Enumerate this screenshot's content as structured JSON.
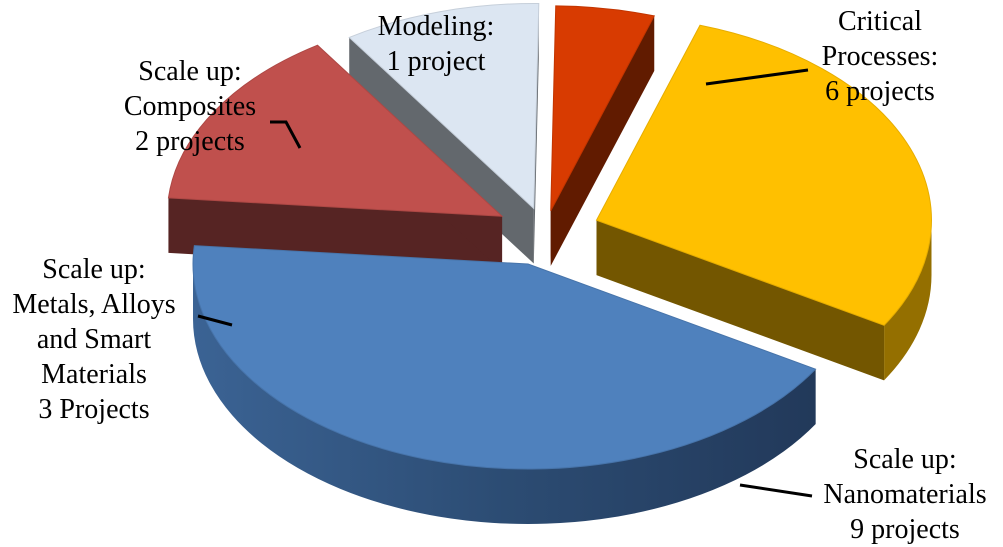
{
  "chart_data": {
    "type": "pie",
    "style": "3d-exploded",
    "slices": [
      {
        "label": "Critical Processes",
        "value": 6,
        "color": "#FFC000",
        "label_lines": [
          "Critical",
          "Processes:",
          "6 projects"
        ]
      },
      {
        "label": "Scale up: Nanomaterials",
        "value": 9,
        "color": "#4F81BD",
        "label_lines": [
          "Scale up:",
          "Nanomaterials",
          "9 projects"
        ]
      },
      {
        "label": "Scale up: Metals, Alloys and Smart Materials",
        "value": 3,
        "color": "#C0504D",
        "label_lines": [
          "Scale up:",
          "Metals, Alloys",
          "and Smart",
          "Materials",
          "3 Projects"
        ]
      },
      {
        "label": "Scale up: Composites",
        "value": 2,
        "color": "#DCE6F2",
        "label_lines": [
          "Scale up:",
          "Composites",
          "2 projects"
        ]
      },
      {
        "label": "Modeling",
        "value": 1,
        "color": "#D83B01",
        "label_lines": [
          "Modeling:",
          "1 project"
        ]
      }
    ],
    "legend": "none (data labels with leader lines)"
  }
}
